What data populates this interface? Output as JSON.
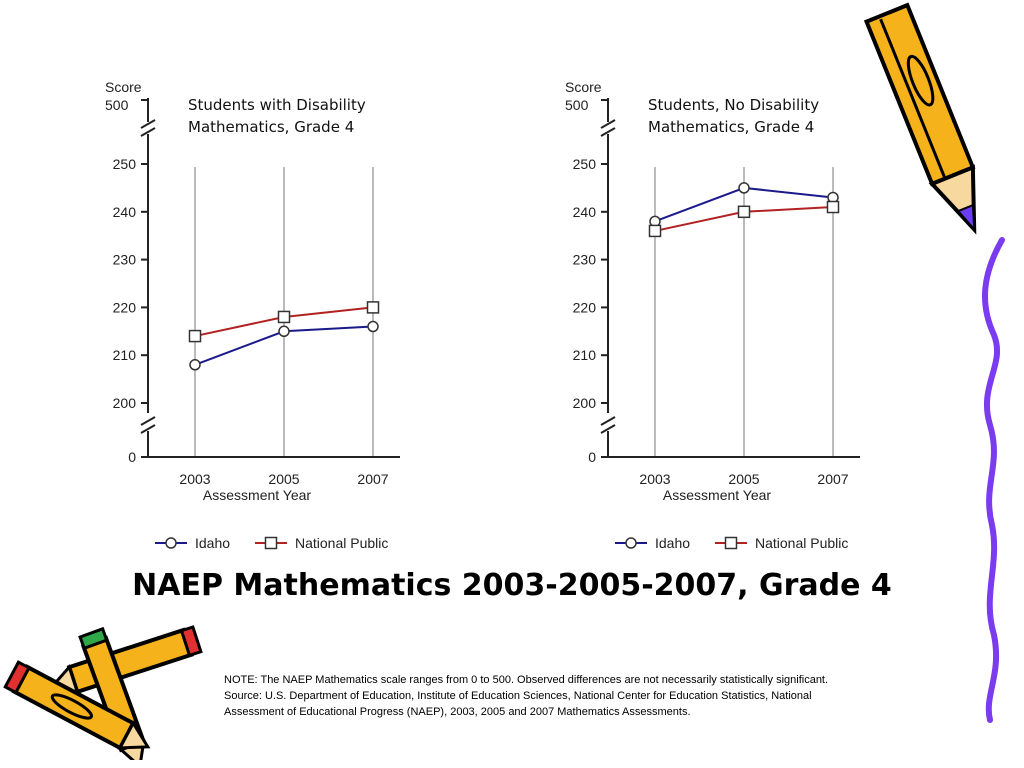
{
  "title": "NAEP Mathematics 2003-2005-2007, Grade 4",
  "note": [
    "NOTE: The NAEP Mathematics scale ranges from 0 to 500.  Observed differences are not necessarily statistically significant.",
    "Source: U.S. Department of Education, Institute of Education Sciences, National Center for Education Statistics, National",
    "Assessment of Educational Progress (NAEP), 2003, 2005 and 2007 Mathematics Assessments."
  ],
  "colors": {
    "idaho": "#1a1a8c",
    "national": "#b22222",
    "grid": "#bbbbbb",
    "pencil_yellow": "#f6b21a",
    "squiggle": "#7b3cf0"
  },
  "chart_data": [
    {
      "type": "line",
      "title": [
        "Students with Disability",
        "Mathematics, Grade 4"
      ],
      "ylabel": "Score",
      "ylabel_max": "500",
      "ylabel_zero": "0",
      "xlabel": "Assessment Year",
      "categories": [
        "2003",
        "2005",
        "2007"
      ],
      "yticks": [
        200,
        210,
        220,
        230,
        240,
        250
      ],
      "ylim": [
        200,
        250
      ],
      "axis_break": true,
      "grid": "vertical",
      "legend_placement": "bottom",
      "series": [
        {
          "name": "Idaho",
          "marker": "circle",
          "values": [
            208,
            215,
            216
          ]
        },
        {
          "name": "National Public",
          "marker": "square",
          "values": [
            214,
            218,
            220
          ]
        }
      ]
    },
    {
      "type": "line",
      "title": [
        "Students, No Disability",
        "Mathematics, Grade 4"
      ],
      "ylabel": "Score",
      "ylabel_max": "500",
      "ylabel_zero": "0",
      "xlabel": "Assessment Year",
      "categories": [
        "2003",
        "2005",
        "2007"
      ],
      "yticks": [
        200,
        210,
        220,
        230,
        240,
        250
      ],
      "ylim": [
        200,
        250
      ],
      "axis_break": true,
      "grid": "vertical",
      "legend_placement": "bottom",
      "series": [
        {
          "name": "Idaho",
          "marker": "circle",
          "values": [
            238,
            245,
            243
          ]
        },
        {
          "name": "National Public",
          "marker": "square",
          "values": [
            236,
            240,
            241
          ]
        }
      ]
    }
  ]
}
